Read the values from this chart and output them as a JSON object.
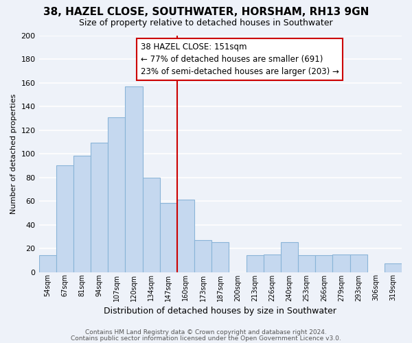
{
  "title": "38, HAZEL CLOSE, SOUTHWATER, HORSHAM, RH13 9GN",
  "subtitle": "Size of property relative to detached houses in Southwater",
  "xlabel": "Distribution of detached houses by size in Southwater",
  "ylabel": "Number of detached properties",
  "bar_labels": [
    "54sqm",
    "67sqm",
    "81sqm",
    "94sqm",
    "107sqm",
    "120sqm",
    "134sqm",
    "147sqm",
    "160sqm",
    "173sqm",
    "187sqm",
    "200sqm",
    "213sqm",
    "226sqm",
    "240sqm",
    "253sqm",
    "266sqm",
    "279sqm",
    "293sqm",
    "306sqm",
    "319sqm"
  ],
  "bar_values": [
    14,
    90,
    98,
    109,
    131,
    157,
    80,
    58,
    61,
    27,
    25,
    0,
    14,
    15,
    25,
    14,
    14,
    15,
    15,
    0,
    7
  ],
  "bar_color": "#c5d8ef",
  "bar_edge_color": "#8ab4d8",
  "vline_x": 7.5,
  "vline_color": "#cc0000",
  "annotation_title": "38 HAZEL CLOSE: 151sqm",
  "annotation_line1": "← 77% of detached houses are smaller (691)",
  "annotation_line2": "23% of semi-detached houses are larger (203) →",
  "annotation_box_color": "#ffffff",
  "annotation_box_edge": "#cc0000",
  "ylim": [
    0,
    200
  ],
  "yticks": [
    0,
    20,
    40,
    60,
    80,
    100,
    120,
    140,
    160,
    180,
    200
  ],
  "footer1": "Contains HM Land Registry data © Crown copyright and database right 2024.",
  "footer2": "Contains public sector information licensed under the Open Government Licence v3.0.",
  "bg_color": "#eef2f9",
  "grid_color": "#ffffff",
  "title_fontsize": 11,
  "subtitle_fontsize": 9,
  "xlabel_fontsize": 9,
  "ylabel_fontsize": 8,
  "tick_fontsize": 7,
  "footer_fontsize": 6.5
}
